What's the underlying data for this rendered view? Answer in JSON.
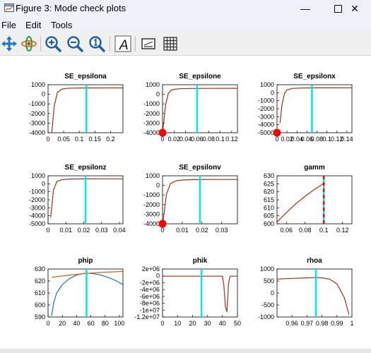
{
  "window": {
    "title": "Figure 3: Mode check plots"
  },
  "menu": {
    "items": [
      "File",
      "Edit",
      "Tools"
    ]
  },
  "toolbar": {
    "tools": [
      "pan-icon",
      "rotate-icon",
      "zoom-in-icon",
      "zoom-out-icon",
      "zoom-reset-icon",
      "text-icon",
      "legend-icon",
      "grid-icon"
    ]
  },
  "colors": {
    "line": "#a0311a",
    "marker": "#00e5ee",
    "dot": "#ff0000",
    "blue": "#1f6eb5",
    "orange": "#d8601a"
  },
  "chart_data": [
    {
      "type": "line",
      "title": "SE_epsilona",
      "xticks": [
        "0",
        "0.05",
        "0.1",
        "0.15",
        "0.2"
      ],
      "yticks": [
        "1000",
        "0",
        "-1000",
        "-2000",
        "-3000",
        "-4000"
      ],
      "xlim": [
        0,
        0.24
      ],
      "ylim": [
        -4000,
        1000
      ],
      "series": [
        {
          "x": [
            0.012,
            0.02,
            0.03,
            0.045,
            0.06,
            0.08,
            0.1,
            0.14,
            0.2,
            0.24
          ],
          "y": [
            -4000,
            -1200,
            200,
            550,
            620,
            650,
            660,
            665,
            667,
            668
          ]
        }
      ],
      "vline": 0.123,
      "dot": null
    },
    {
      "type": "line",
      "title": "SE_epsilone",
      "xticks": [
        "0",
        "0.02",
        "0.04",
        "0.06",
        "0.08",
        "0.1",
        "0.12"
      ],
      "yticks": [
        "1000",
        "0",
        "-1000",
        "-2000",
        "-3000",
        "-4000"
      ],
      "xlim": [
        0,
        0.13
      ],
      "ylim": [
        -4000,
        1000
      ],
      "series": [
        {
          "x": [
            0.0005,
            0.005,
            0.01,
            0.015,
            0.02,
            0.03,
            0.05,
            0.08,
            0.13
          ],
          "y": [
            -3800,
            -1200,
            100,
            420,
            520,
            580,
            610,
            620,
            625
          ]
        }
      ],
      "vline": 0.06,
      "dot": [
        0,
        -4000
      ]
    },
    {
      "type": "line",
      "title": "SE_epsilonx",
      "xticks": [
        "0",
        "0.02",
        "0.04",
        "0.06",
        "0.08",
        "0.1",
        "0.12",
        "0.14"
      ],
      "yticks": [
        "1000",
        "0",
        "-1000",
        "-2000",
        "-3000",
        "-4000",
        "-5000"
      ],
      "xlim": [
        0,
        0.15
      ],
      "ylim": [
        -5000,
        1000
      ],
      "series": [
        {
          "x": [
            0.006,
            0.01,
            0.015,
            0.02,
            0.03,
            0.05,
            0.08,
            0.12,
            0.15
          ],
          "y": [
            -3800,
            -1500,
            -100,
            350,
            530,
            590,
            610,
            615,
            618
          ]
        }
      ],
      "vline": 0.07,
      "dot": [
        0,
        -5000
      ]
    },
    {
      "type": "line",
      "title": "SE_epsilonz",
      "xticks": [
        "0",
        "0.01",
        "0.02",
        "0.03",
        "0.04"
      ],
      "yticks": [
        "1000",
        "0",
        "-1000",
        "-2000",
        "-3000",
        "-4000",
        "-5000"
      ],
      "xlim": [
        0,
        0.042
      ],
      "ylim": [
        -5000,
        1000
      ],
      "series": [
        {
          "x": [
            0.0015,
            0.003,
            0.005,
            0.008,
            0.012,
            0.02,
            0.03,
            0.042
          ],
          "y": [
            -4200,
            -800,
            300,
            520,
            590,
            615,
            620,
            622
          ]
        }
      ],
      "vline": 0.021,
      "dot": null
    },
    {
      "type": "line",
      "title": "SE_epsilonv",
      "xticks": [
        "0",
        "0.01",
        "0.02",
        "0.03"
      ],
      "yticks": [
        "1000",
        "0",
        "-1000",
        "-2000",
        "-3000",
        "-4000"
      ],
      "xlim": [
        0,
        0.038
      ],
      "ylim": [
        -4000,
        1000
      ],
      "series": [
        {
          "x": [
            0.0003,
            0.002,
            0.004,
            0.007,
            0.01,
            0.015,
            0.025,
            0.038
          ],
          "y": [
            -3700,
            -900,
            200,
            480,
            560,
            600,
            615,
            620
          ]
        }
      ],
      "vline": 0.019,
      "dot": [
        0,
        -4000
      ]
    },
    {
      "type": "line",
      "title": "gamm",
      "xticks": [
        "0.06",
        "0.08",
        "0.1",
        "0.12"
      ],
      "yticks": [
        "630",
        "625",
        "620",
        "615",
        "610",
        "605",
        "600"
      ],
      "xlim": [
        0.05,
        0.13
      ],
      "ylim": [
        600,
        630
      ],
      "series": [
        {
          "x": [
            0.05,
            0.06,
            0.07,
            0.08,
            0.09,
            0.1
          ],
          "y": [
            601,
            607,
            612.5,
            617.2,
            621.5,
            625.3
          ]
        }
      ],
      "vline": 0.1,
      "vline_dashed": true,
      "dot": null
    },
    {
      "type": "line",
      "title": "phip",
      "xticks": [
        "0",
        "20",
        "40",
        "60",
        "80",
        "100"
      ],
      "yticks": [
        "630",
        "620",
        "610",
        "600",
        "590"
      ],
      "xlim": [
        0,
        105
      ],
      "ylim": [
        590,
        630
      ],
      "series": [
        {
          "x": [
            5,
            8,
            12,
            20,
            30,
            40,
            50,
            55,
            65,
            75,
            85,
            95,
            105
          ],
          "y": [
            591,
            602,
            610,
            617,
            622,
            625,
            626.3,
            626.5,
            626,
            624.8,
            622.8,
            620.3,
            617
          ],
          "color": "blue"
        },
        {
          "x": [
            5,
            20,
            40,
            55,
            80,
            105
          ],
          "y": [
            623,
            624.2,
            625.5,
            626.4,
            627.3,
            628
          ],
          "color": "orange"
        }
      ],
      "vline": 54,
      "dot": null
    },
    {
      "type": "line",
      "title": "phik",
      "xticks": [
        "0",
        "10",
        "20",
        "30",
        "40",
        "50"
      ],
      "yticks": [
        "2e+06",
        "0",
        "-2e+06",
        "-4e+06",
        "-6e+06",
        "-8e+06",
        "-1e+07",
        "-1.2e+07"
      ],
      "xlim": [
        0,
        50
      ],
      "ylim": [
        -12000000,
        2000000
      ],
      "series": [
        {
          "x": [
            0,
            40,
            41,
            42,
            43,
            44,
            45,
            50
          ],
          "y": [
            -100000,
            -100000,
            -3000000,
            -9000000,
            -10500000,
            -2500000,
            -100000,
            -100000
          ]
        }
      ],
      "vline": 26,
      "dot": null
    },
    {
      "type": "line",
      "title": "rhoa",
      "xticks": [
        "0.96",
        "0.97",
        "0.98",
        "0.99",
        "1"
      ],
      "yticks": [
        "1000",
        "500",
        "0",
        "-500",
        "-1000"
      ],
      "xlim": [
        0.95,
        1.0
      ],
      "ylim": [
        -1000,
        1000
      ],
      "series": [
        {
          "x": [
            0.95,
            0.96,
            0.97,
            0.975,
            0.98,
            0.985,
            0.99,
            0.995,
            0.998
          ],
          "y": [
            580,
            610,
            630,
            640,
            630,
            580,
            380,
            -200,
            -900
          ]
        }
      ],
      "vline": 0.976,
      "dot": null
    }
  ]
}
